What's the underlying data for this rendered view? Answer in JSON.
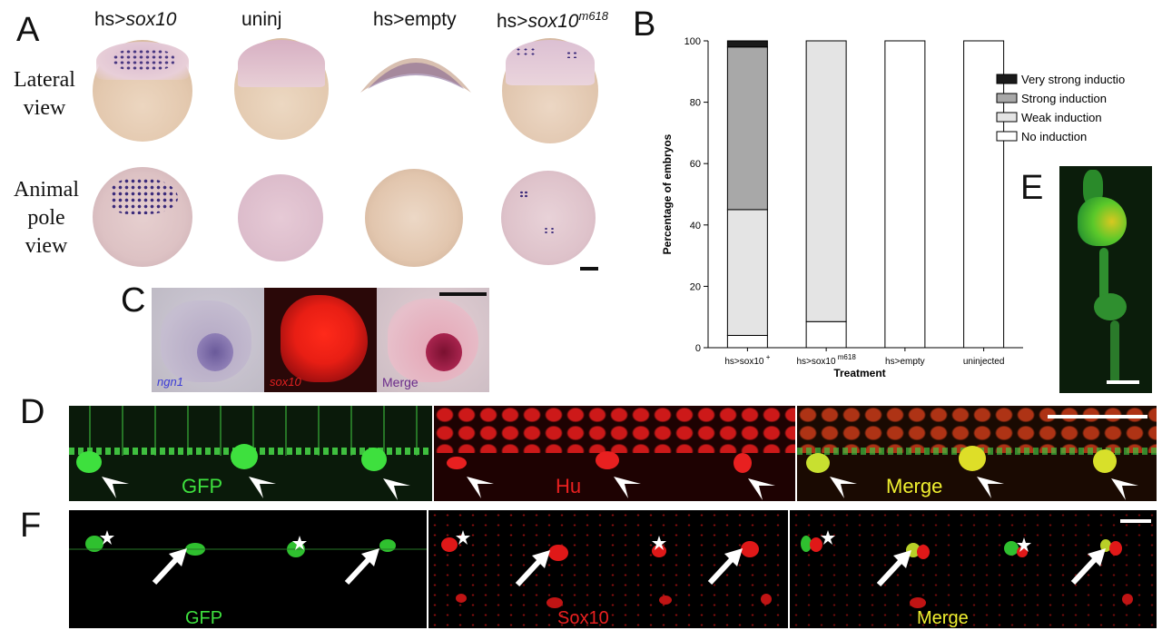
{
  "panels": {
    "A": {
      "letter": "A",
      "columns": [
        {
          "prefix": "hs>",
          "name": "sox10",
          "sup": ""
        },
        {
          "prefix": "uninj",
          "name": "",
          "sup": ""
        },
        {
          "prefix": "hs>empty",
          "name": "",
          "sup": ""
        },
        {
          "prefix": "hs>",
          "name": "sox10",
          "sup": "m618"
        }
      ],
      "rows": [
        {
          "line1": "Lateral",
          "line2": "view"
        },
        {
          "line1": "Animal",
          "line2": "pole",
          "line3": "view"
        }
      ]
    },
    "B": {
      "letter": "B"
    },
    "C": {
      "letter": "C",
      "labels": [
        "ngn1",
        "sox10",
        "Merge"
      ],
      "label_colors": [
        "#3b3bd6",
        "#e02020",
        "#6a2b8a"
      ]
    },
    "D": {
      "letter": "D",
      "labels": [
        "GFP",
        "Hu",
        "Merge"
      ]
    },
    "E": {
      "letter": "E"
    },
    "F": {
      "letter": "F",
      "labels": [
        "GFP",
        "Sox10",
        "Merge"
      ]
    }
  },
  "chart_data": {
    "type": "bar",
    "stacked": true,
    "categories": [
      "hs>sox10 +",
      "hs>sox10 m618",
      "hs>empty",
      "uninjected"
    ],
    "category_parts": [
      {
        "main": "hs>sox10",
        "sup": "+"
      },
      {
        "main": "hs>sox10",
        "sup": "m618"
      },
      {
        "main": "hs>empty",
        "sup": ""
      },
      {
        "main": "uninjected",
        "sup": ""
      }
    ],
    "series": [
      {
        "name": "No induction",
        "color": "#ffffff",
        "values": [
          4,
          8.5,
          100,
          100
        ]
      },
      {
        "name": "Weak induction",
        "color": "#e4e4e4",
        "values": [
          41,
          91.5,
          0,
          0
        ]
      },
      {
        "name": "Strong induction",
        "color": "#a8a8a8",
        "values": [
          53,
          0,
          0,
          0
        ]
      },
      {
        "name": "Very strong induction",
        "color": "#1a1a1a",
        "values": [
          2,
          0,
          0,
          0
        ]
      }
    ],
    "legend_order": [
      "Very strong induction",
      "Strong induction",
      "Weak induction",
      "No induction"
    ],
    "ylabel": "Percentage of embryos",
    "xlabel": "Treatment",
    "ylim": [
      0,
      100
    ],
    "yticks": [
      0,
      20,
      40,
      60,
      80,
      100
    ],
    "legend_position": "top-right",
    "grid": false
  }
}
